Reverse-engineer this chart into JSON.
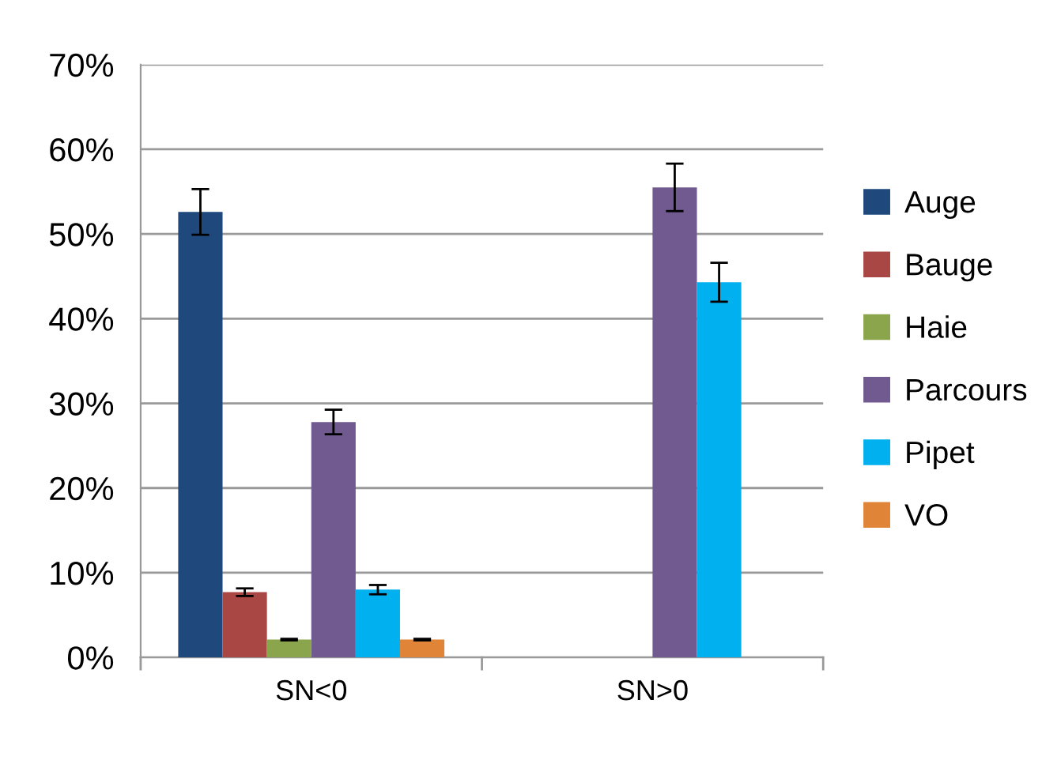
{
  "chart_data": {
    "type": "bar",
    "categories": [
      "SN<0",
      "SN>0"
    ],
    "series": [
      {
        "name": "Auge",
        "color": "#1f497d",
        "values": [
          52.6,
          null
        ],
        "errors": [
          2.7,
          null
        ]
      },
      {
        "name": "Bauge",
        "color": "#a94744",
        "values": [
          7.7,
          null
        ],
        "errors": [
          0.45,
          null
        ]
      },
      {
        "name": "Haie",
        "color": "#8aa54b",
        "values": [
          2.1,
          null
        ],
        "errors": [
          0.1,
          null
        ]
      },
      {
        "name": "Parcours",
        "color": "#705a8f",
        "values": [
          27.8,
          55.5
        ],
        "errors": [
          1.45,
          2.8
        ]
      },
      {
        "name": "Pipet",
        "color": "#00b0ef",
        "values": [
          8.0,
          44.3
        ],
        "errors": [
          0.55,
          2.3
        ]
      },
      {
        "name": "VO",
        "color": "#e08438",
        "values": [
          2.1,
          null
        ],
        "errors": [
          0.1,
          null
        ]
      }
    ],
    "ylim": [
      0,
      70
    ],
    "yticks": [
      {
        "value": 0,
        "label": "0%"
      },
      {
        "value": 10,
        "label": "10%"
      },
      {
        "value": 20,
        "label": "20%"
      },
      {
        "value": 30,
        "label": "30%"
      },
      {
        "value": 40,
        "label": "40%"
      },
      {
        "value": 50,
        "label": "50%"
      },
      {
        "value": 60,
        "label": "60%"
      },
      {
        "value": 70,
        "label": "70%"
      }
    ],
    "grid": "y",
    "legend": "right"
  }
}
